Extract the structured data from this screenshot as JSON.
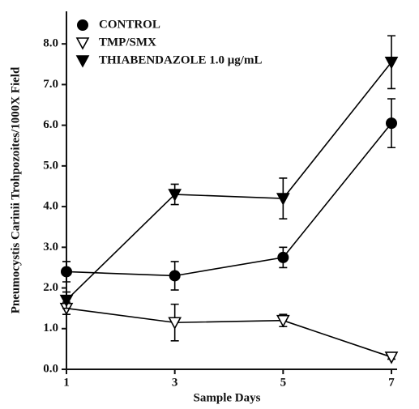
{
  "chart_data": {
    "type": "line",
    "x_label": "Sample Days",
    "y_label": "Pneumocystis Carinii Trohpozoites/1000X Field",
    "x": [
      1,
      3,
      5,
      7
    ],
    "series": [
      {
        "name": "CONTROL",
        "color": "#000000",
        "marker": "circle",
        "values": [
          2.4,
          2.3,
          2.75,
          6.05
        ],
        "errors": [
          0.25,
          0.35,
          0.25,
          0.6
        ]
      },
      {
        "name": "TMP/SMX",
        "color": "#000000",
        "marker": "open-triangle-down",
        "values": [
          1.5,
          1.15,
          1.2,
          0.3
        ],
        "errors": [
          0.15,
          0.45,
          0.15,
          0.05
        ]
      },
      {
        "name": "THIABENDAZOLE 1.0 μg/mL",
        "color": "#000000",
        "marker": "triangle-down",
        "values": [
          1.7,
          4.3,
          4.2,
          7.55
        ],
        "errors": [
          0.2,
          0.25,
          0.5,
          0.65
        ]
      }
    ],
    "xlim": [
      1,
      7
    ],
    "xticks": [
      1,
      3,
      5,
      7
    ],
    "ylim": [
      0,
      8.8
    ],
    "yticks": [
      {
        "value": 0,
        "label": "0.0"
      },
      {
        "value": 1,
        "label": "1.0"
      },
      {
        "value": 2,
        "label": "2.0"
      },
      {
        "value": 3,
        "label": "3.0"
      },
      {
        "value": 4,
        "label": "4.0"
      },
      {
        "value": 5,
        "label": "5.0"
      },
      {
        "value": 6,
        "label": "6.0"
      },
      {
        "value": 7,
        "label": "7.0"
      },
      {
        "value": 8,
        "label": "8.0"
      }
    ],
    "legend": "upper left",
    "grid": false
  }
}
